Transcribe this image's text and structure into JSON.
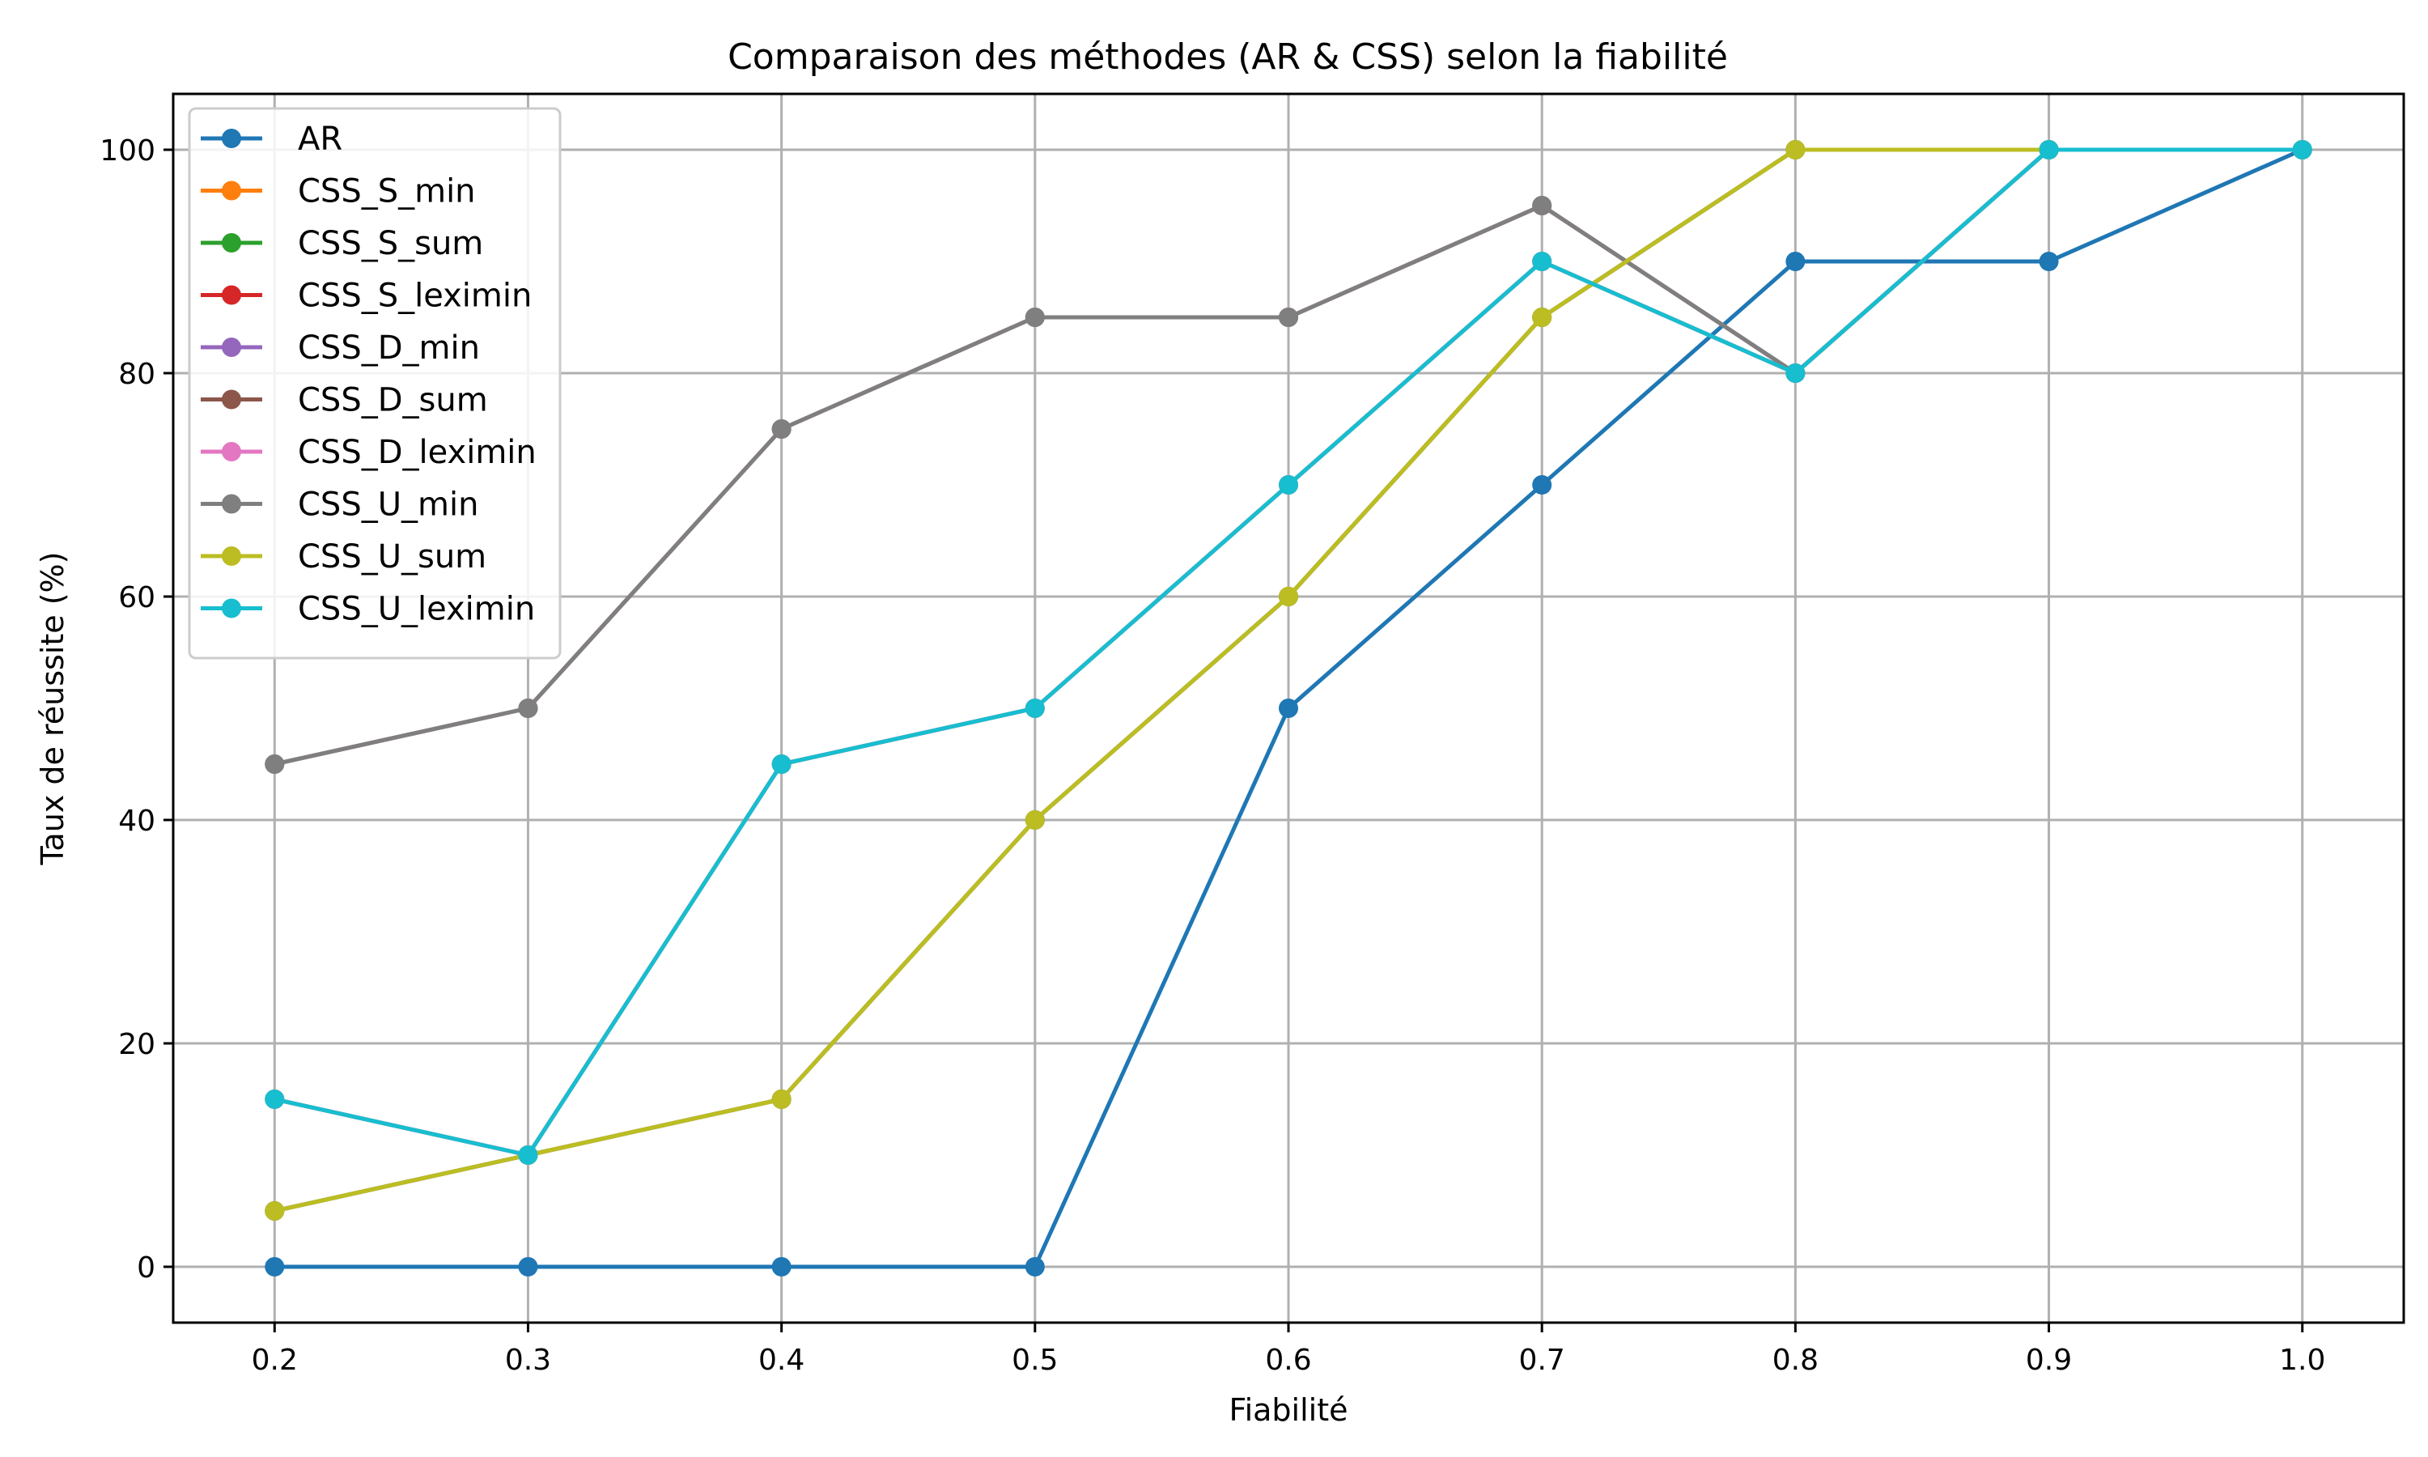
{
  "chart_data": {
    "type": "line",
    "title": "Comparaison des méthodes (AR & CSS) selon la fiabilité",
    "xlabel": "Fiabilité",
    "ylabel": "Taux de réussite (%)",
    "x": [
      0.2,
      0.3,
      0.4,
      0.5,
      0.6,
      0.7,
      0.8,
      0.9,
      1.0
    ],
    "x_ticks": [
      "0.2",
      "0.3",
      "0.4",
      "0.5",
      "0.6",
      "0.7",
      "0.8",
      "0.9",
      "1.0"
    ],
    "y_ticks": [
      "0",
      "20",
      "40",
      "60",
      "80",
      "100"
    ],
    "xlim": [
      0.16,
      1.04
    ],
    "ylim": [
      -5,
      105
    ],
    "grid": true,
    "legend_position": "top-left",
    "series": [
      {
        "name": "AR",
        "color": "#1f77b4",
        "values": [
          0,
          0,
          0,
          0,
          50,
          70,
          90,
          90,
          100
        ]
      },
      {
        "name": "CSS_S_min",
        "color": "#ff7f0e",
        "values": [
          45,
          50,
          75,
          85,
          85,
          95,
          80,
          100,
          100
        ]
      },
      {
        "name": "CSS_S_sum",
        "color": "#2ca02c",
        "values": [
          5,
          10,
          15,
          40,
          60,
          85,
          100,
          100,
          100
        ]
      },
      {
        "name": "CSS_S_leximin",
        "color": "#d62728",
        "values": [
          15,
          10,
          45,
          50,
          70,
          90,
          80,
          100,
          100
        ]
      },
      {
        "name": "CSS_D_min",
        "color": "#9467bd",
        "values": [
          45,
          50,
          75,
          85,
          85,
          95,
          80,
          100,
          100
        ]
      },
      {
        "name": "CSS_D_sum",
        "color": "#8c564b",
        "values": [
          5,
          10,
          15,
          40,
          60,
          85,
          100,
          100,
          100
        ]
      },
      {
        "name": "CSS_D_leximin",
        "color": "#e377c2",
        "values": [
          15,
          10,
          45,
          50,
          70,
          90,
          80,
          100,
          100
        ]
      },
      {
        "name": "CSS_U_min",
        "color": "#7f7f7f",
        "values": [
          45,
          50,
          75,
          85,
          85,
          95,
          80,
          100,
          100
        ]
      },
      {
        "name": "CSS_U_sum",
        "color": "#bcbd22",
        "values": [
          5,
          10,
          15,
          40,
          60,
          85,
          100,
          100,
          100
        ]
      },
      {
        "name": "CSS_U_leximin",
        "color": "#17becf",
        "values": [
          15,
          10,
          45,
          50,
          70,
          90,
          80,
          100,
          100
        ]
      }
    ]
  }
}
